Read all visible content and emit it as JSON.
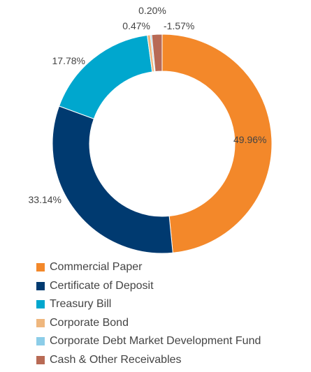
{
  "chart_data": {
    "type": "pie",
    "variant": "donut",
    "series": [
      {
        "name": "Commercial Paper",
        "value": 49.96,
        "label": "49.96%",
        "color": "#F3882A"
      },
      {
        "name": "Certificate of Deposit",
        "value": 33.14,
        "label": "33.14%",
        "color": "#003A70"
      },
      {
        "name": "Treasury Bill",
        "value": 17.78,
        "label": "17.78%",
        "color": "#00A7CE"
      },
      {
        "name": "Corporate Bond",
        "value": 0.47,
        "label": "0.47%",
        "color": "#EFB77E"
      },
      {
        "name": "Corporate Debt Market Development Fund",
        "value": 0.2,
        "label": "0.20%",
        "color": "#8CCDE8"
      },
      {
        "name": "Cash & Other Receivables",
        "value": -1.57,
        "label": "-1.57%",
        "color": "#B86A55"
      }
    ],
    "legend_position": "bottom-left"
  }
}
